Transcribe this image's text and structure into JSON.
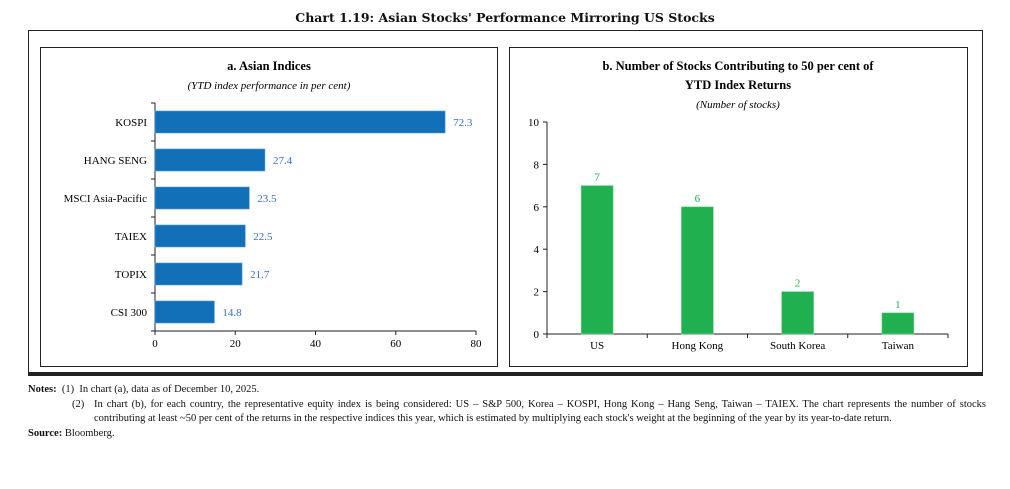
{
  "title": "Chart 1.19: Asian Stocks' Performance Mirroring US Stocks",
  "chart_data": [
    {
      "type": "bar",
      "orientation": "horizontal",
      "title": "a. Asian Indices",
      "subtitle": "(YTD index performance in per cent)",
      "categories": [
        "KOSPI",
        "HANG SENG",
        "MSCI Asia-Pacific",
        "TAIEX",
        "TOPIX",
        "CSI 300"
      ],
      "values": [
        72.3,
        27.4,
        23.5,
        22.5,
        21.7,
        14.8
      ],
      "value_labels": [
        "72.3",
        "27.4",
        "23.5",
        "22.5",
        "21.7",
        "14.8"
      ],
      "xlim": [
        0,
        80
      ],
      "xticks": [
        "0",
        "20",
        "40",
        "60",
        "80"
      ],
      "bar_color": "#1170b8",
      "label_color": "#3a6fc4",
      "grid": false
    },
    {
      "type": "bar",
      "title": "b. Number of Stocks Contributing to 50 per cent of YTD Index Returns",
      "title_lines": [
        "b. Number of Stocks Contributing to 50 per cent of",
        "YTD Index Returns"
      ],
      "subtitle": "(Number of stocks)",
      "categories": [
        "US",
        "Hong Kong",
        "South Korea",
        "Taiwan"
      ],
      "values": [
        7,
        6,
        2,
        1
      ],
      "value_labels": [
        "7",
        "6",
        "2",
        "1"
      ],
      "ylim": [
        0,
        10
      ],
      "yticks": [
        "0",
        "2",
        "4",
        "6",
        "8",
        "10"
      ],
      "bar_color": "#21b04f",
      "label_color": "#21b04f",
      "grid": false
    }
  ],
  "notes": {
    "label": "Notes:",
    "items": [
      {
        "num": "(1)",
        "text": "In chart (a), data as of December 10, 2025."
      },
      {
        "num": "(2)",
        "text": "In chart (b), for each country, the representative equity index is being considered: US – S&P 500, Korea – KOSPI, Hong Kong – Hang Seng, Taiwan – TAIEX. The chart represents the number of stocks contributing at least ~50 per cent of the returns in the respective indices this year, which is estimated by multiplying each stock's weight at the beginning of the year by its year-to-date return."
      }
    ]
  },
  "source": {
    "label": "Source:",
    "text": "Bloomberg."
  }
}
